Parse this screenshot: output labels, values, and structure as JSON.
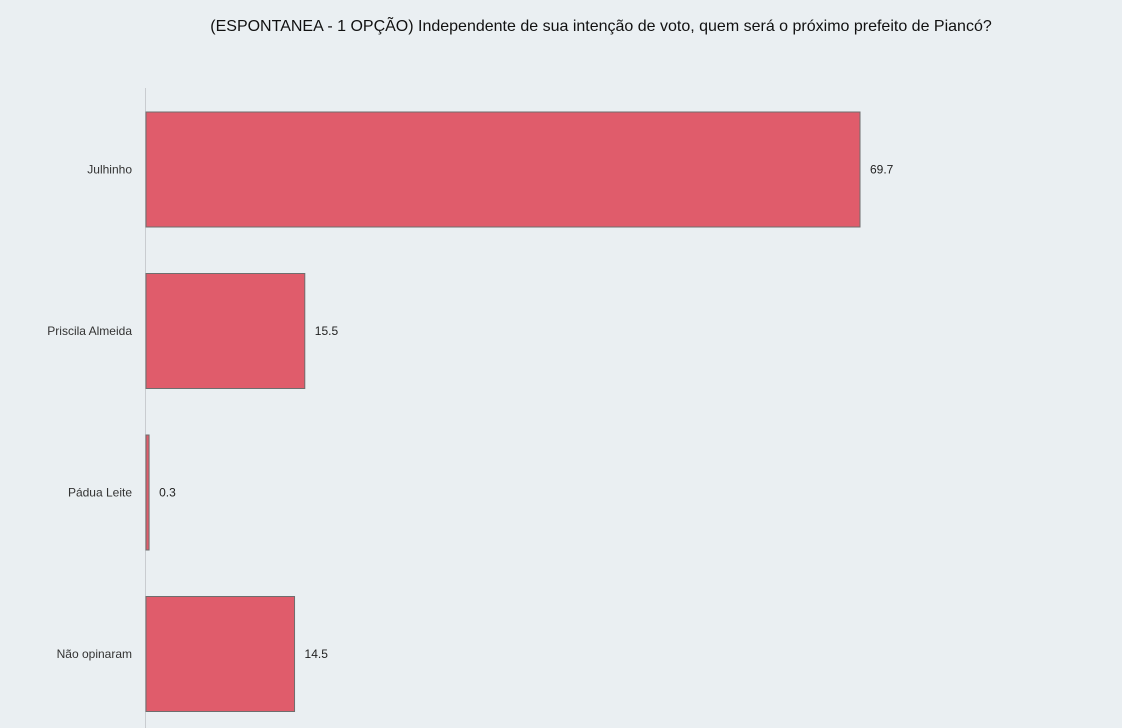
{
  "chart_data": {
    "type": "bar",
    "orientation": "horizontal",
    "title": "(ESPONTANEA - 1 OPÇÃO) Independente de sua intenção de voto, quem será o próximo prefeito de Piancó?",
    "categories": [
      "Julhinho",
      "Priscila Almeida",
      "Pádua Leite",
      "Não opinaram"
    ],
    "values": [
      69.7,
      15.5,
      0.3,
      14.5
    ],
    "data_labels": [
      "69.7",
      "15.5",
      "0.3",
      "14.5"
    ],
    "xlabel": "",
    "ylabel": "",
    "xlim": [
      0,
      75
    ],
    "grid": false,
    "legend": "none",
    "colors": {
      "bar_fill": "#e05c6b",
      "bar_stroke": "#6e6e6e",
      "axis": "#c9ccd0",
      "background": "#eaeff2"
    }
  }
}
